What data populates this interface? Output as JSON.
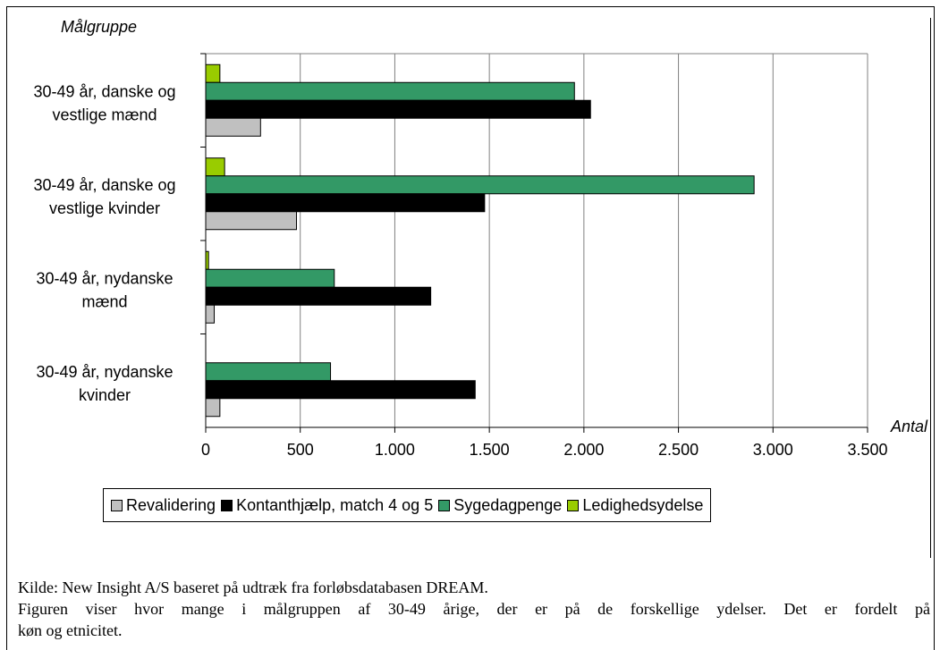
{
  "chart_data": {
    "type": "bar",
    "orientation": "horizontal",
    "ylabel": "Målgruppe",
    "xlabel": "Antal",
    "xlim": [
      0,
      3500
    ],
    "xticks": [
      0,
      500,
      1000,
      1500,
      2000,
      2500,
      3000,
      3500
    ],
    "xtick_labels": [
      "0",
      "500",
      "1.000",
      "1.500",
      "2.000",
      "2.500",
      "3.000",
      "3.500"
    ],
    "grid": true,
    "legend_position": "bottom",
    "categories": [
      [
        "30-49 år, danske og",
        "vestlige mænd"
      ],
      [
        "30-49 år, danske og",
        "vestlige kvinder"
      ],
      [
        "30-49 år, nydanske",
        "mænd"
      ],
      [
        "30-49 år, nydanske",
        "kvinder"
      ]
    ],
    "series": [
      {
        "name": "Revalidering",
        "color": "#c0c0c0",
        "values": [
          290,
          480,
          45,
          75
        ]
      },
      {
        "name": "Kontanthjælp, match 4 og 5",
        "color": "#000000",
        "values": [
          2035,
          1475,
          1190,
          1425
        ]
      },
      {
        "name": "Sygedagpenge",
        "color": "#339966",
        "values": [
          1950,
          2900,
          680,
          660
        ]
      },
      {
        "name": "Ledighedsydelse",
        "color": "#99cc00",
        "values": [
          75,
          100,
          15,
          0
        ]
      }
    ]
  },
  "caption": {
    "source": "Kilde: New Insight A/S baseret på udtræk fra forløbsdatabasen DREAM.",
    "line1": "Figuren viser hvor mange i målgruppen af 30-49 årige, der er på de forskellige ydelser. Det er fordelt på",
    "line2": "køn og etnicitet."
  }
}
